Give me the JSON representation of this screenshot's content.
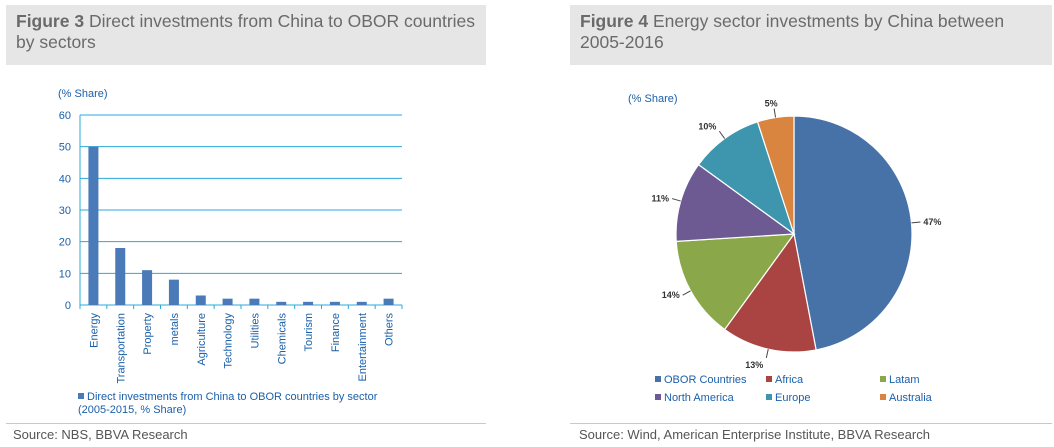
{
  "figure3": {
    "title_bold": "Figure 3",
    "title_rest": " Direct investments from China to OBOR countries by sectors",
    "source": "Source: NBS, BBVA Research"
  },
  "figure4": {
    "title_bold": "Figure 4",
    "title_rest": "  Energy sector investments by China between 2005-2016",
    "source": "Source: Wind, American Enterprise Institute, BBVA Research"
  },
  "chart_data": [
    {
      "type": "bar",
      "ylabel": "(% Share)",
      "ylim": [
        0,
        60
      ],
      "yticks": [
        0,
        10,
        20,
        30,
        40,
        50,
        60
      ],
      "grid": true,
      "categories": [
        "Energy",
        "Transportation",
        "Property",
        "metals",
        "Agriculture",
        "Technology",
        "Utilities",
        "Chemicals",
        "Tourism",
        "Finance",
        "Entertainment",
        "Others"
      ],
      "series": [
        {
          "name": "Direct investments from China to OBOR countries by sector (2005-2015, % Share)",
          "values": [
            50,
            18,
            11,
            8,
            3,
            2,
            2,
            1,
            1,
            1,
            1,
            2
          ],
          "color": "#4a7ab8"
        }
      ],
      "legend": "bottom"
    },
    {
      "type": "pie",
      "ylabel": "(% Share)",
      "labels": [
        "OBOR Countries",
        "Africa",
        "Latam",
        "North America",
        "Europe",
        "Australia"
      ],
      "values": [
        47,
        13,
        14,
        11,
        10,
        5
      ],
      "data_labels": [
        "47%",
        "13%",
        "14%",
        "11%",
        "10%",
        "5%"
      ],
      "colors": [
        "#4672a8",
        "#a94442",
        "#8aa84a",
        "#6e5a92",
        "#3d96ad",
        "#d9843f"
      ],
      "legend": "bottom"
    }
  ]
}
